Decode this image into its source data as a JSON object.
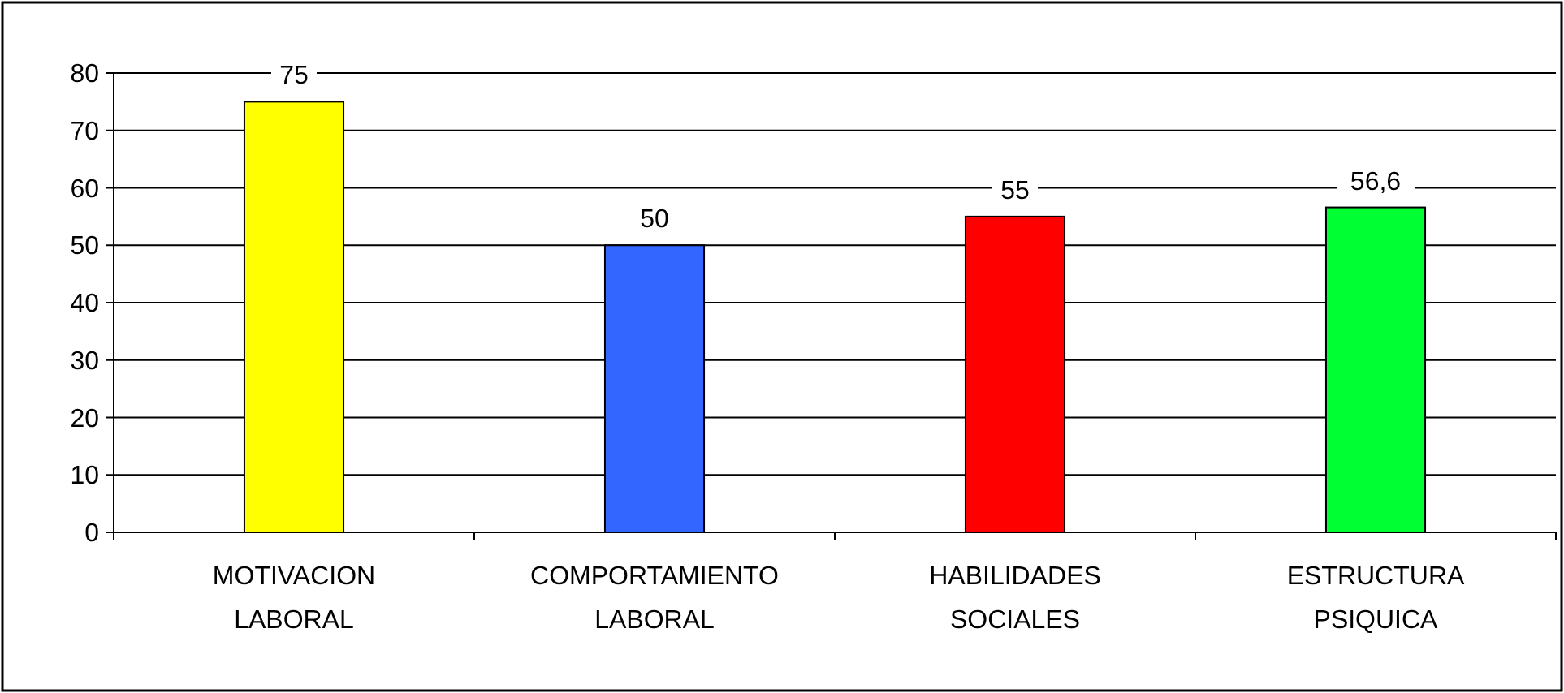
{
  "chart_data": {
    "type": "bar",
    "categories": [
      "MOTIVACION LABORAL",
      "COMPORTAMIENTO LABORAL",
      "HABILIDADES SOCIALES",
      "ESTRUCTURA PSIQUICA"
    ],
    "values": [
      75,
      50,
      55,
      56.6
    ],
    "colors": [
      "#ffff00",
      "#3366ff",
      "#ff0000",
      "#00ff33"
    ],
    "value_labels": [
      "75",
      "50",
      "55",
      "56,6"
    ],
    "ylim": [
      0,
      80
    ],
    "yticks": [
      0,
      10,
      20,
      30,
      40,
      50,
      60,
      70,
      80
    ],
    "grid": "y"
  }
}
